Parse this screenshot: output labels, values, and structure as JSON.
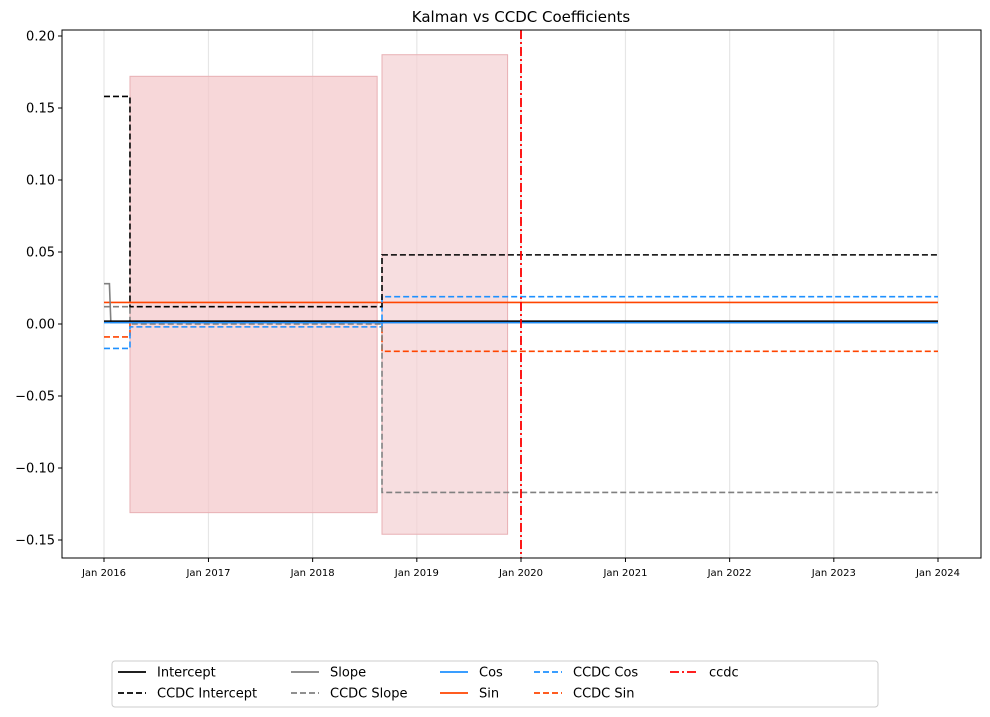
{
  "chart_data": {
    "type": "line",
    "title": "Kalman vs CCDC Coefficients",
    "xlabel": "",
    "ylabel": "",
    "x_axis_type": "date",
    "xlim": [
      "2016-01-01",
      "2024-01-01"
    ],
    "ylim": [
      -0.163,
      0.205
    ],
    "x_ticks": [
      {
        "date": "2016-01-01",
        "label": "Jan 2016"
      },
      {
        "date": "2017-01-01",
        "label": "Jan 2017"
      },
      {
        "date": "2018-01-01",
        "label": "Jan 2018"
      },
      {
        "date": "2019-01-01",
        "label": "Jan 2019"
      },
      {
        "date": "2020-01-01",
        "label": "Jan 2020"
      },
      {
        "date": "2021-01-01",
        "label": "Jan 2021"
      },
      {
        "date": "2022-01-01",
        "label": "Jan 2022"
      },
      {
        "date": "2023-01-01",
        "label": "Jan 2023"
      },
      {
        "date": "2024-01-01",
        "label": "Jan 2024"
      }
    ],
    "y_ticks": [
      {
        "value": 0.2,
        "label": "0.20"
      },
      {
        "value": 0.15,
        "label": "0.15"
      },
      {
        "value": 0.1,
        "label": "0.10"
      },
      {
        "value": 0.05,
        "label": "0.05"
      },
      {
        "value": 0.0,
        "label": "0.00"
      },
      {
        "value": -0.05,
        "label": "−0.05"
      },
      {
        "value": -0.1,
        "label": "−0.10"
      },
      {
        "value": -0.15,
        "label": "−0.15"
      }
    ],
    "grid": "vertical only",
    "legend_position": "bottom-center",
    "shaded_regions": [
      {
        "x": [
          "2016-04-01",
          "2018-08-15"
        ],
        "y": [
          -0.131,
          0.172
        ],
        "color": "#f3c6c9"
      },
      {
        "x": [
          "2018-09-01",
          "2019-11-15"
        ],
        "y": [
          -0.146,
          0.187
        ],
        "color": "#f4d0d3"
      }
    ],
    "series": [
      {
        "name": "Intercept",
        "color": "#000000",
        "style": "solid",
        "points": [
          [
            "2016-01-01",
            0.002
          ],
          [
            "2024-01-01",
            0.002
          ]
        ]
      },
      {
        "name": "Slope",
        "color": "#808080",
        "style": "solid",
        "points": [
          [
            "2016-01-01",
            0.028
          ],
          [
            "2016-01-20",
            0.028
          ],
          [
            "2016-01-25",
            0.001
          ],
          [
            "2024-01-01",
            0.001
          ]
        ]
      },
      {
        "name": "Cos",
        "color": "#1e90ff",
        "style": "solid",
        "points": [
          [
            "2016-01-01",
            0.001
          ],
          [
            "2024-01-01",
            0.001
          ]
        ]
      },
      {
        "name": "Sin",
        "color": "#ff4500",
        "style": "solid",
        "points": [
          [
            "2016-01-01",
            0.015
          ],
          [
            "2024-01-01",
            0.015
          ]
        ]
      },
      {
        "name": "CCDC Intercept",
        "color": "#000000",
        "style": "dashed",
        "points": [
          [
            "2016-01-01",
            0.158
          ],
          [
            "2016-04-01",
            0.158
          ],
          [
            "2016-04-01",
            0.012
          ],
          [
            "2018-09-01",
            0.012
          ],
          [
            "2018-09-01",
            0.048
          ],
          [
            "2024-01-01",
            0.048
          ]
        ]
      },
      {
        "name": "CCDC Slope",
        "color": "#808080",
        "style": "dashed",
        "points": [
          [
            "2016-01-01",
            0.012
          ],
          [
            "2016-04-01",
            0.012
          ],
          [
            "2016-04-01",
            0.0
          ],
          [
            "2018-09-01",
            0.0
          ],
          [
            "2018-09-01",
            -0.117
          ],
          [
            "2024-01-01",
            -0.117
          ]
        ]
      },
      {
        "name": "CCDC Cos",
        "color": "#1e90ff",
        "style": "dashed",
        "points": [
          [
            "2016-01-01",
            -0.017
          ],
          [
            "2016-04-01",
            -0.017
          ],
          [
            "2016-04-01",
            -0.002
          ],
          [
            "2018-09-01",
            -0.002
          ],
          [
            "2018-09-01",
            0.019
          ],
          [
            "2024-01-01",
            0.019
          ]
        ]
      },
      {
        "name": "CCDC Sin",
        "color": "#ff4500",
        "style": "dashed",
        "points": [
          [
            "2016-01-01",
            -0.009
          ],
          [
            "2016-04-01",
            -0.009
          ],
          [
            "2016-04-01",
            0.001
          ],
          [
            "2018-09-01",
            0.001
          ],
          [
            "2018-09-01",
            -0.019
          ],
          [
            "2024-01-01",
            -0.019
          ]
        ]
      }
    ],
    "vlines": [
      {
        "name": "ccdc",
        "date": "2020-01-01",
        "color": "#ff0000",
        "style": "dashdot"
      }
    ],
    "legend": [
      {
        "label": "Intercept",
        "color": "#000000",
        "style": "solid"
      },
      {
        "label": "CCDC Intercept",
        "color": "#000000",
        "style": "dashed"
      },
      {
        "label": "Slope",
        "color": "#808080",
        "style": "solid"
      },
      {
        "label": "CCDC Slope",
        "color": "#808080",
        "style": "dashed"
      },
      {
        "label": "Cos",
        "color": "#1e90ff",
        "style": "solid"
      },
      {
        "label": "Sin",
        "color": "#ff4500",
        "style": "solid"
      },
      {
        "label": "CCDC Cos",
        "color": "#1e90ff",
        "style": "dashed"
      },
      {
        "label": "CCDC Sin",
        "color": "#ff4500",
        "style": "dashed"
      },
      {
        "label": "ccdc",
        "color": "#ff0000",
        "style": "dashdot"
      }
    ]
  }
}
